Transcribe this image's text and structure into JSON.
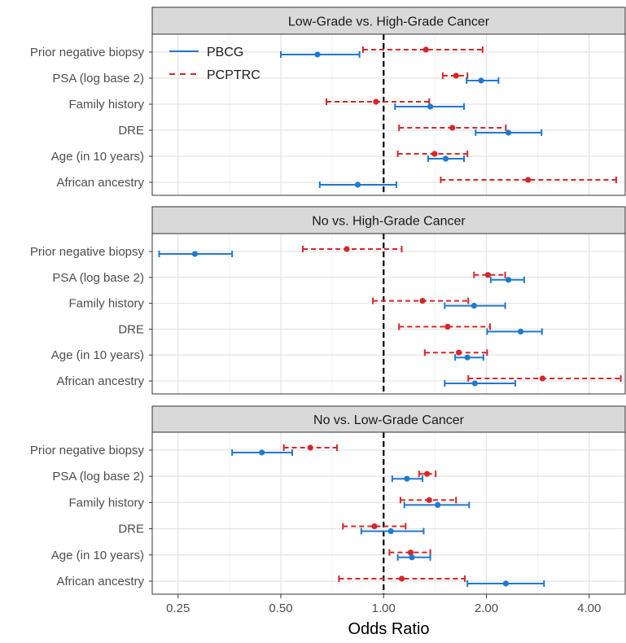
{
  "chart_data": {
    "type": "forest",
    "xlabel": "Odds Ratio",
    "ylabel": "",
    "x_scale": "log2",
    "xlim": [
      0.21,
      5.1
    ],
    "x_ticks": [
      0.25,
      0.5,
      1.0,
      2.0,
      4.0
    ],
    "x_tick_labels": [
      "0.25",
      "0.50",
      "1.00",
      "2.00",
      "4.00"
    ],
    "reference_line": 1.0,
    "grid": true,
    "legend_position": "top-left (inside first panel)",
    "categories": [
      "Prior negative biopsy",
      "PSA (log base 2)",
      "Family history",
      "DRE",
      "Age (in 10 years)",
      "African ancestry"
    ],
    "series": [
      {
        "name": "PBCG",
        "color": "#1f78d1",
        "linestyle": "solid"
      },
      {
        "name": "PCPTRC",
        "color": "#d62728",
        "linestyle": "dashed"
      }
    ],
    "panels": [
      {
        "title": "Low-Grade vs. High-Grade Cancer",
        "rows": [
          {
            "PBCG": {
              "est": 0.64,
              "lo": 0.5,
              "hi": 0.85
            },
            "PCPTRC": {
              "est": 1.33,
              "lo": 0.87,
              "hi": 1.95
            }
          },
          {
            "PBCG": {
              "est": 1.93,
              "lo": 1.75,
              "hi": 2.17
            },
            "PCPTRC": {
              "est": 1.63,
              "lo": 1.49,
              "hi": 1.76
            }
          },
          {
            "PBCG": {
              "est": 1.37,
              "lo": 1.08,
              "hi": 1.72
            },
            "PCPTRC": {
              "est": 0.95,
              "lo": 0.68,
              "hi": 1.36
            }
          },
          {
            "PBCG": {
              "est": 2.32,
              "lo": 1.86,
              "hi": 2.9
            },
            "PCPTRC": {
              "est": 1.59,
              "lo": 1.11,
              "hi": 2.28
            }
          },
          {
            "PBCG": {
              "est": 1.52,
              "lo": 1.35,
              "hi": 1.72
            },
            "PCPTRC": {
              "est": 1.41,
              "lo": 1.1,
              "hi": 1.76
            }
          },
          {
            "PBCG": {
              "est": 0.84,
              "lo": 0.65,
              "hi": 1.09
            },
            "PCPTRC": {
              "est": 2.65,
              "lo": 1.47,
              "hi": 4.8
            }
          }
        ]
      },
      {
        "title": "No vs. High-Grade Cancer",
        "rows": [
          {
            "PBCG": {
              "est": 0.28,
              "lo": 0.22,
              "hi": 0.36
            },
            "PCPTRC": {
              "est": 0.78,
              "lo": 0.58,
              "hi": 1.13
            }
          },
          {
            "PBCG": {
              "est": 2.32,
              "lo": 2.06,
              "hi": 2.58
            },
            "PCPTRC": {
              "est": 2.02,
              "lo": 1.84,
              "hi": 2.27
            }
          },
          {
            "PBCG": {
              "est": 1.84,
              "lo": 1.51,
              "hi": 2.27
            },
            "PCPTRC": {
              "est": 1.3,
              "lo": 0.93,
              "hi": 1.77
            }
          },
          {
            "PBCG": {
              "est": 2.52,
              "lo": 2.01,
              "hi": 2.91
            },
            "PCPTRC": {
              "est": 1.54,
              "lo": 1.11,
              "hi": 2.05
            }
          },
          {
            "PBCG": {
              "est": 1.76,
              "lo": 1.62,
              "hi": 1.96
            },
            "PCPTRC": {
              "est": 1.66,
              "lo": 1.32,
              "hi": 2.01
            }
          },
          {
            "PBCG": {
              "est": 1.85,
              "lo": 1.51,
              "hi": 2.43
            },
            "PCPTRC": {
              "est": 2.92,
              "lo": 1.77,
              "hi": 4.95
            }
          }
        ]
      },
      {
        "title": "No vs. Low-Grade Cancer",
        "rows": [
          {
            "PBCG": {
              "est": 0.44,
              "lo": 0.36,
              "hi": 0.54
            },
            "PCPTRC": {
              "est": 0.61,
              "lo": 0.51,
              "hi": 0.73
            }
          },
          {
            "PBCG": {
              "est": 1.17,
              "lo": 1.06,
              "hi": 1.3
            },
            "PCPTRC": {
              "est": 1.34,
              "lo": 1.27,
              "hi": 1.42
            }
          },
          {
            "PBCG": {
              "est": 1.44,
              "lo": 1.15,
              "hi": 1.78
            },
            "PCPTRC": {
              "est": 1.36,
              "lo": 1.12,
              "hi": 1.63
            }
          },
          {
            "PBCG": {
              "est": 1.05,
              "lo": 0.86,
              "hi": 1.31
            },
            "PCPTRC": {
              "est": 0.94,
              "lo": 0.76,
              "hi": 1.16
            }
          },
          {
            "PBCG": {
              "est": 1.21,
              "lo": 1.1,
              "hi": 1.37
            },
            "PCPTRC": {
              "est": 1.2,
              "lo": 1.04,
              "hi": 1.37
            }
          },
          {
            "PBCG": {
              "est": 2.28,
              "lo": 1.76,
              "hi": 2.95
            },
            "PCPTRC": {
              "est": 1.13,
              "lo": 0.74,
              "hi": 1.73
            }
          }
        ]
      }
    ]
  }
}
